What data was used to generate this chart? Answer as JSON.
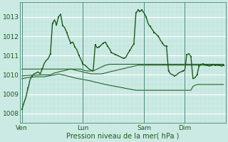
{
  "xlabel": "Pression niveau de la mer( hPa )",
  "bg_color": "#cceae4",
  "line_color": "#1a5c1a",
  "yticks": [
    1008,
    1009,
    1010,
    1011,
    1012,
    1013
  ],
  "ylim": [
    1007.6,
    1013.6
  ],
  "xtick_labels": [
    "Ven",
    "Lun",
    "Sam",
    "Dim"
  ],
  "xtick_positions": [
    0,
    30,
    60,
    80
  ],
  "total_points": 100,
  "main_line": [
    1008.2,
    1008.55,
    1008.85,
    1009.3,
    1009.75,
    1009.95,
    1010.05,
    1010.1,
    1010.15,
    1010.05,
    1010.3,
    1010.6,
    1010.75,
    1010.85,
    1011.1,
    1012.65,
    1012.85,
    1012.6,
    1013.0,
    1013.15,
    1012.55,
    1012.45,
    1012.2,
    1011.9,
    1011.65,
    1011.7,
    1011.45,
    1011.3,
    1011.0,
    1010.8,
    1010.55,
    1010.5,
    1010.4,
    1010.3,
    1010.25,
    1010.2,
    1011.55,
    1011.4,
    1011.45,
    1011.55,
    1011.65,
    1011.7,
    1011.5,
    1011.35,
    1011.15,
    1011.1,
    1011.05,
    1011.0,
    1010.95,
    1010.9,
    1010.85,
    1010.9,
    1011.1,
    1011.25,
    1011.45,
    1011.6,
    1013.2,
    1013.35,
    1013.3,
    1013.35,
    1013.2,
    1013.0,
    1012.65,
    1012.5,
    1012.35,
    1012.2,
    1012.1,
    1012.0,
    1011.8,
    1011.65,
    1011.5,
    1011.5,
    1010.2,
    1010.05,
    1010.0,
    1009.95,
    1010.0,
    1010.1,
    1010.15,
    1010.2,
    1010.25,
    1011.05,
    1011.1,
    1010.95,
    1009.8,
    1009.85,
    1010.0,
    1010.45,
    1010.55,
    1010.55,
    1010.5,
    1010.5,
    1010.45,
    1010.5,
    1010.55,
    1010.5,
    1010.5,
    1010.5,
    1010.45,
    1010.5
  ],
  "flat_line1": [
    1010.3,
    1010.3,
    1010.3,
    1010.3,
    1010.3,
    1010.3,
    1010.3,
    1010.3,
    1010.3,
    1010.3,
    1010.3,
    1010.3,
    1010.3,
    1010.3,
    1010.3,
    1010.3,
    1010.3,
    1010.3,
    1010.3,
    1010.3,
    1010.3,
    1010.3,
    1010.3,
    1010.3,
    1010.3,
    1010.3,
    1010.3,
    1010.3,
    1010.3,
    1010.3,
    1010.25,
    1010.22,
    1010.2,
    1010.2,
    1010.2,
    1010.2,
    1010.25,
    1010.3,
    1010.35,
    1010.4,
    1010.45,
    1010.5,
    1010.52,
    1010.55,
    1010.55,
    1010.55,
    1010.55,
    1010.55,
    1010.55,
    1010.55,
    1010.55,
    1010.55,
    1010.55,
    1010.55,
    1010.55,
    1010.55,
    1010.55,
    1010.55,
    1010.55,
    1010.55,
    1010.55,
    1010.55,
    1010.55,
    1010.55,
    1010.55,
    1010.55,
    1010.55,
    1010.55,
    1010.55,
    1010.55,
    1010.55,
    1010.55,
    1010.55,
    1010.55,
    1010.55,
    1010.55,
    1010.55,
    1010.55,
    1010.55,
    1010.55,
    1010.55,
    1010.55,
    1010.55,
    1010.55,
    1010.55,
    1010.55,
    1010.55,
    1010.55,
    1010.55,
    1010.55,
    1010.55,
    1010.55,
    1010.55,
    1010.55,
    1010.55,
    1010.55,
    1010.55,
    1010.55,
    1010.55,
    1010.55
  ],
  "flat_line2": [
    1009.95,
    1009.95,
    1009.97,
    1009.97,
    1009.98,
    1009.98,
    1009.98,
    1009.99,
    1009.99,
    1010.0,
    1010.0,
    1010.0,
    1010.0,
    1010.0,
    1010.0,
    1010.05,
    1010.1,
    1010.12,
    1010.15,
    1010.18,
    1010.2,
    1010.22,
    1010.25,
    1010.28,
    1010.3,
    1010.28,
    1010.25,
    1010.22,
    1010.2,
    1010.18,
    1010.15,
    1010.12,
    1010.1,
    1010.08,
    1010.05,
    1010.05,
    1010.05,
    1010.05,
    1010.05,
    1010.05,
    1010.07,
    1010.1,
    1010.12,
    1010.15,
    1010.18,
    1010.2,
    1010.22,
    1010.25,
    1010.28,
    1010.3,
    1010.32,
    1010.35,
    1010.38,
    1010.4,
    1010.42,
    1010.45,
    1010.47,
    1010.5,
    1010.5,
    1010.5,
    1010.5,
    1010.5,
    1010.5,
    1010.5,
    1010.5,
    1010.5,
    1010.5,
    1010.5,
    1010.5,
    1010.5,
    1010.5,
    1010.5,
    1010.5,
    1010.5,
    1010.5,
    1010.5,
    1010.5,
    1010.5,
    1010.5,
    1010.5,
    1010.5,
    1010.5,
    1010.5,
    1010.5,
    1010.5,
    1010.5,
    1010.5,
    1010.5,
    1010.5,
    1010.5,
    1010.5,
    1010.5,
    1010.5,
    1010.5,
    1010.5,
    1010.5,
    1010.5,
    1010.5,
    1010.5,
    1010.5
  ],
  "flat_line3": [
    1009.8,
    1009.82,
    1009.84,
    1009.86,
    1009.87,
    1009.88,
    1009.89,
    1009.9,
    1009.9,
    1009.9,
    1009.9,
    1009.9,
    1009.92,
    1009.94,
    1009.96,
    1009.98,
    1010.0,
    1010.02,
    1010.04,
    1010.02,
    1010.0,
    1009.98,
    1009.95,
    1009.92,
    1009.9,
    1009.87,
    1009.84,
    1009.82,
    1009.8,
    1009.78,
    1009.76,
    1009.74,
    1009.72,
    1009.7,
    1009.68,
    1009.65,
    1009.62,
    1009.6,
    1009.58,
    1009.55,
    1009.53,
    1009.5,
    1009.48,
    1009.46,
    1009.44,
    1009.42,
    1009.4,
    1009.38,
    1009.36,
    1009.34,
    1009.32,
    1009.3,
    1009.28,
    1009.26,
    1009.24,
    1009.22,
    1009.2,
    1009.2,
    1009.2,
    1009.2,
    1009.2,
    1009.2,
    1009.2,
    1009.2,
    1009.2,
    1009.2,
    1009.2,
    1009.2,
    1009.2,
    1009.2,
    1009.2,
    1009.2,
    1009.2,
    1009.2,
    1009.2,
    1009.2,
    1009.2,
    1009.2,
    1009.2,
    1009.2,
    1009.2,
    1009.2,
    1009.2,
    1009.2,
    1009.4,
    1009.45,
    1009.5,
    1009.5,
    1009.5,
    1009.5,
    1009.5,
    1009.5,
    1009.5,
    1009.5,
    1009.5,
    1009.5,
    1009.5,
    1009.5,
    1009.5,
    1009.5
  ],
  "main_markers": [
    0,
    3,
    5,
    10,
    14,
    15,
    17,
    18,
    20,
    22,
    24,
    26,
    28,
    30,
    36,
    38,
    40,
    42,
    44,
    46,
    50,
    53,
    55,
    56,
    57,
    58,
    59,
    61,
    63,
    65,
    67,
    69,
    71,
    72,
    75,
    79,
    81,
    83,
    86,
    87,
    89,
    91,
    93,
    95,
    97,
    99
  ],
  "linewidth": 1.0,
  "marker_size": 2.0
}
